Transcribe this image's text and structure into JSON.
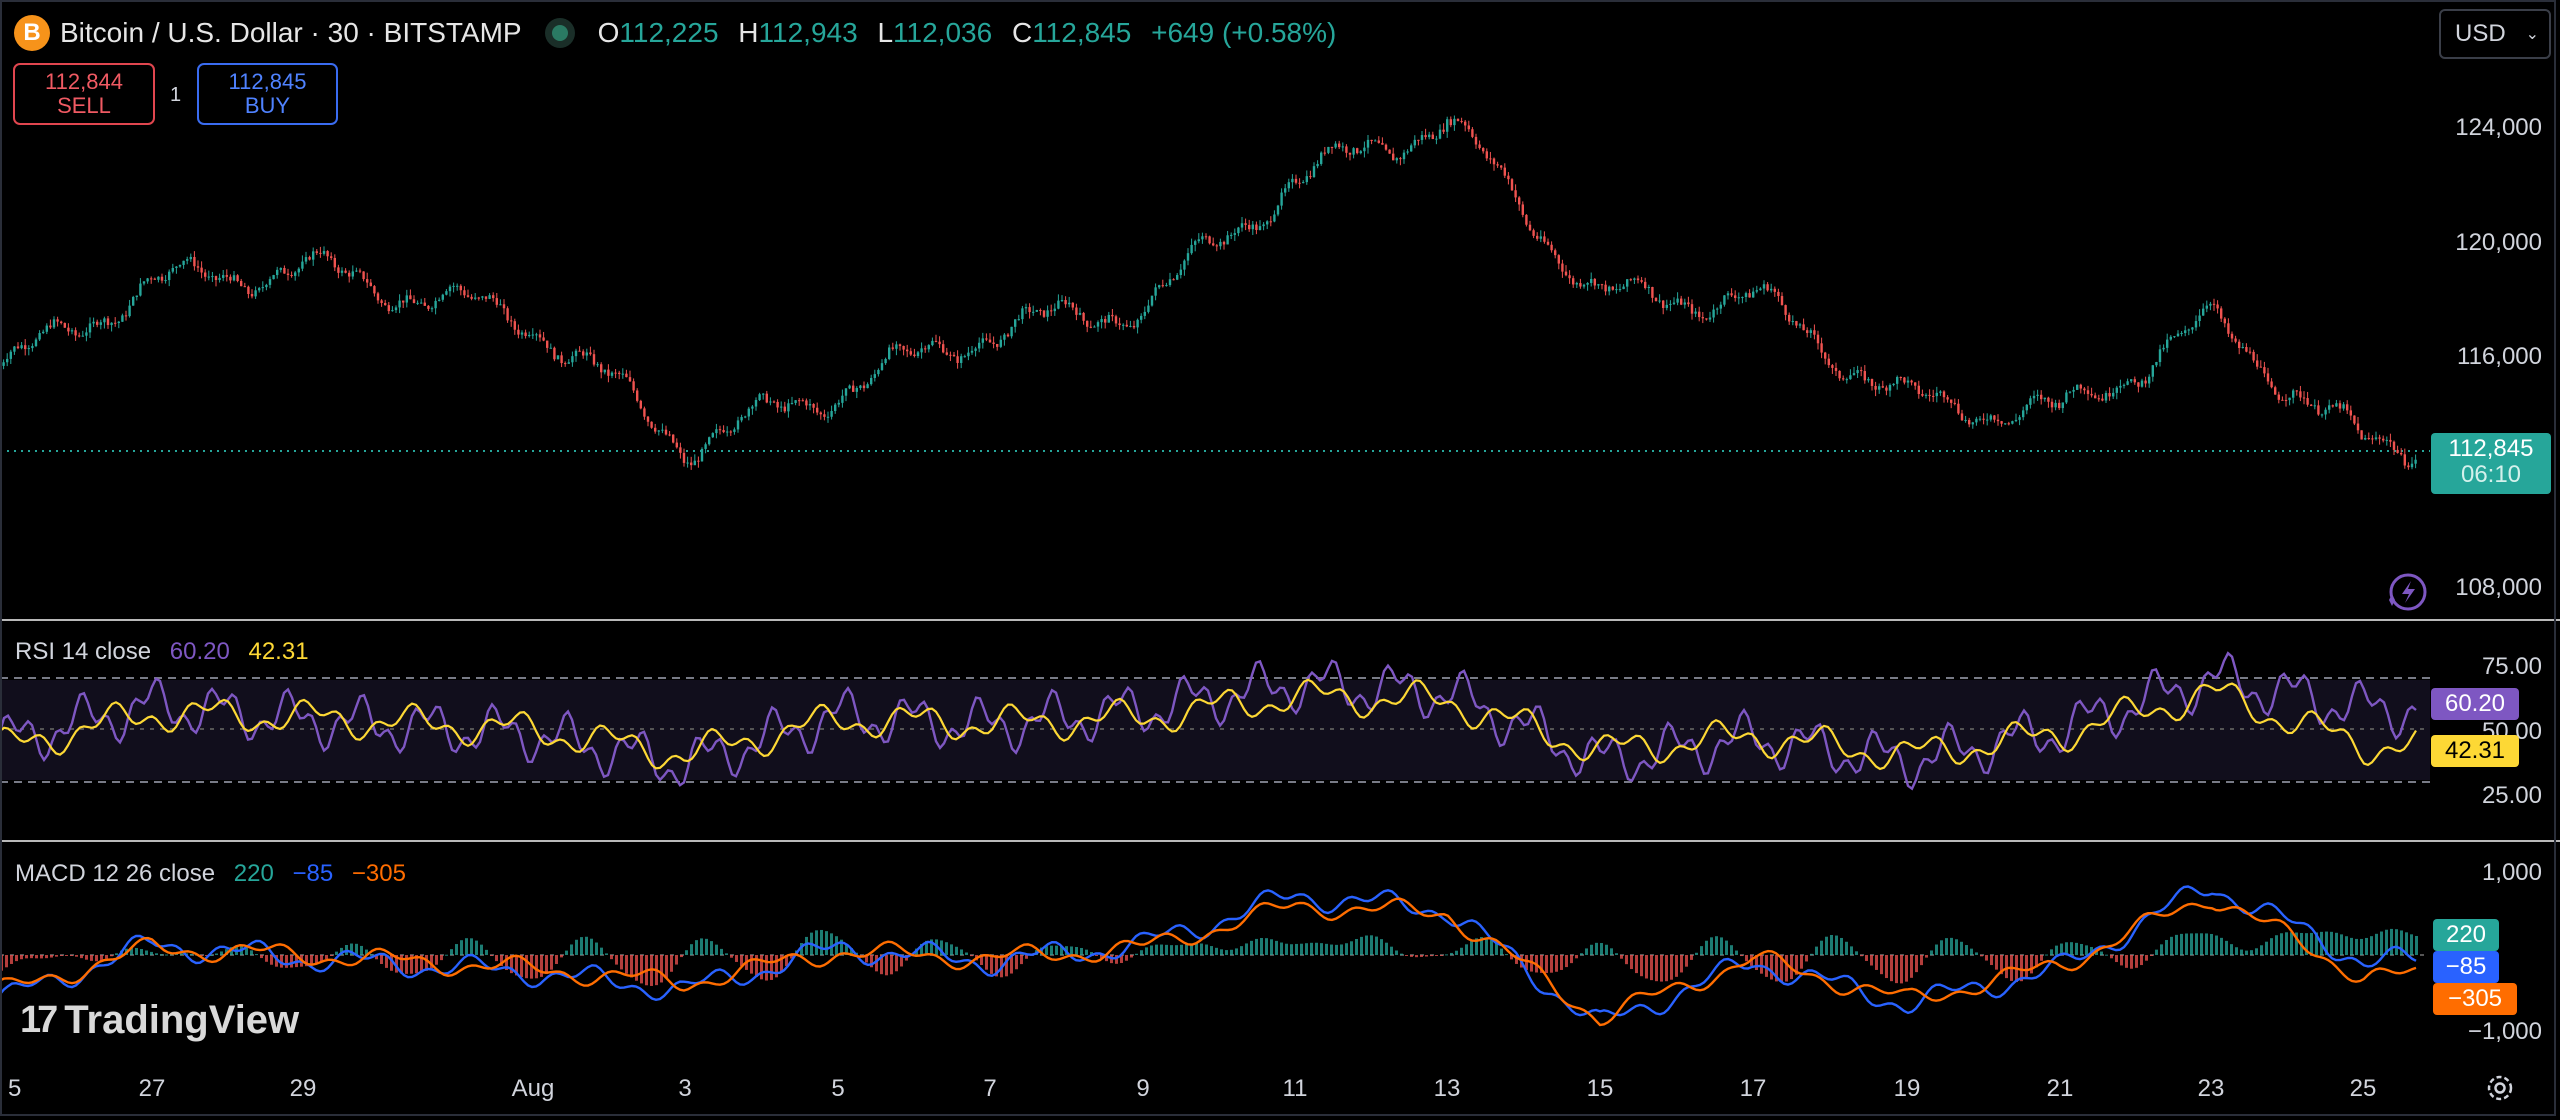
{
  "header": {
    "symbol_icon": "B",
    "title": "Bitcoin / U.S. Dollar · 30 · BITSTAMP",
    "ohlc": [
      {
        "k": "O",
        "v": "112,225"
      },
      {
        "k": "H",
        "v": "112,943"
      },
      {
        "k": "L",
        "v": "112,036"
      },
      {
        "k": "C",
        "v": "112,845"
      }
    ],
    "change": "+649 (+0.58%)"
  },
  "trade": {
    "sell_price": "112,844",
    "sell_label": "SELL",
    "buy_price": "112,845",
    "buy_label": "BUY",
    "quantity": "1"
  },
  "currency": "USD",
  "price_axis": [
    "124,000",
    "120,000",
    "116,000",
    "108,000"
  ],
  "last_price": {
    "value": "112,845",
    "countdown": "06:10"
  },
  "rsi": {
    "label": "RSI 14 close",
    "v1": "60.20",
    "v2": "42.31",
    "axis": [
      "75.00",
      "50.00",
      "25.00"
    ]
  },
  "macd": {
    "label": "MACD 12 26 close",
    "v1": "220",
    "v2": "−85",
    "v3": "−305",
    "axis": [
      "1,000",
      "−1,000"
    ]
  },
  "dates": [
    "5",
    "27",
    "29",
    "Aug",
    "3",
    "5",
    "7",
    "9",
    "11",
    "13",
    "15",
    "17",
    "19",
    "21",
    "23",
    "25"
  ],
  "branding": "TradingView",
  "colors": {
    "up": "#26a69a",
    "down": "#ef5350",
    "rsi": "#7e57c2",
    "rsi_ma": "#fdd835",
    "macd": "#2962ff",
    "signal": "#ff6d00"
  },
  "chart_data": [
    {
      "type": "line",
      "title": "Bitcoin / U.S. Dollar · 30 · BITSTAMP",
      "x": [
        "5",
        "27",
        "29",
        "Aug",
        "3",
        "5",
        "7",
        "9",
        "11",
        "13",
        "15",
        "17",
        "19",
        "21",
        "23",
        "25"
      ],
      "series": [
        {
          "values": [
            115500,
            118300,
            118800,
            117000,
            112800,
            114700,
            116700,
            117500,
            121800,
            123800,
            117800,
            117800,
            114300,
            113900,
            117000,
            112845
          ]
        }
      ],
      "ylim": [
        107500,
        126000
      ]
    },
    {
      "type": "line",
      "title": "RSI 14 close",
      "x": [
        "5",
        "27",
        "29",
        "Aug",
        "3",
        "5",
        "7",
        "9",
        "11",
        "13",
        "15",
        "17",
        "19",
        "21",
        "23",
        "25"
      ],
      "series": [
        {
          "values": [
            45,
            62,
            55,
            48,
            33,
            57,
            52,
            60,
            72,
            68,
            35,
            46,
            35,
            50,
            75,
            60.2
          ]
        },
        {
          "values": [
            42,
            58,
            56,
            50,
            38,
            55,
            53,
            56,
            66,
            64,
            40,
            47,
            38,
            48,
            68,
            42.31
          ]
        }
      ],
      "ylim": [
        15,
        85
      ]
    },
    {
      "type": "line",
      "title": "MACD 12 26 close",
      "x": [
        "5",
        "27",
        "29",
        "Aug",
        "3",
        "5",
        "7",
        "9",
        "11",
        "13",
        "15",
        "17",
        "19",
        "21",
        "23",
        "25"
      ],
      "series": [
        {
          "values": [
            -600,
            150,
            -50,
            -250,
            -500,
            100,
            -100,
            150,
            850,
            650,
            -1000,
            -100,
            -700,
            -200,
            1000,
            -85
          ]
        },
        {
          "values": [
            -500,
            100,
            0,
            -200,
            -400,
            50,
            -50,
            100,
            700,
            600,
            -900,
            -50,
            -650,
            -150,
            850,
            -305
          ]
        }
      ],
      "ylim": [
        -1400,
        1400
      ]
    }
  ]
}
